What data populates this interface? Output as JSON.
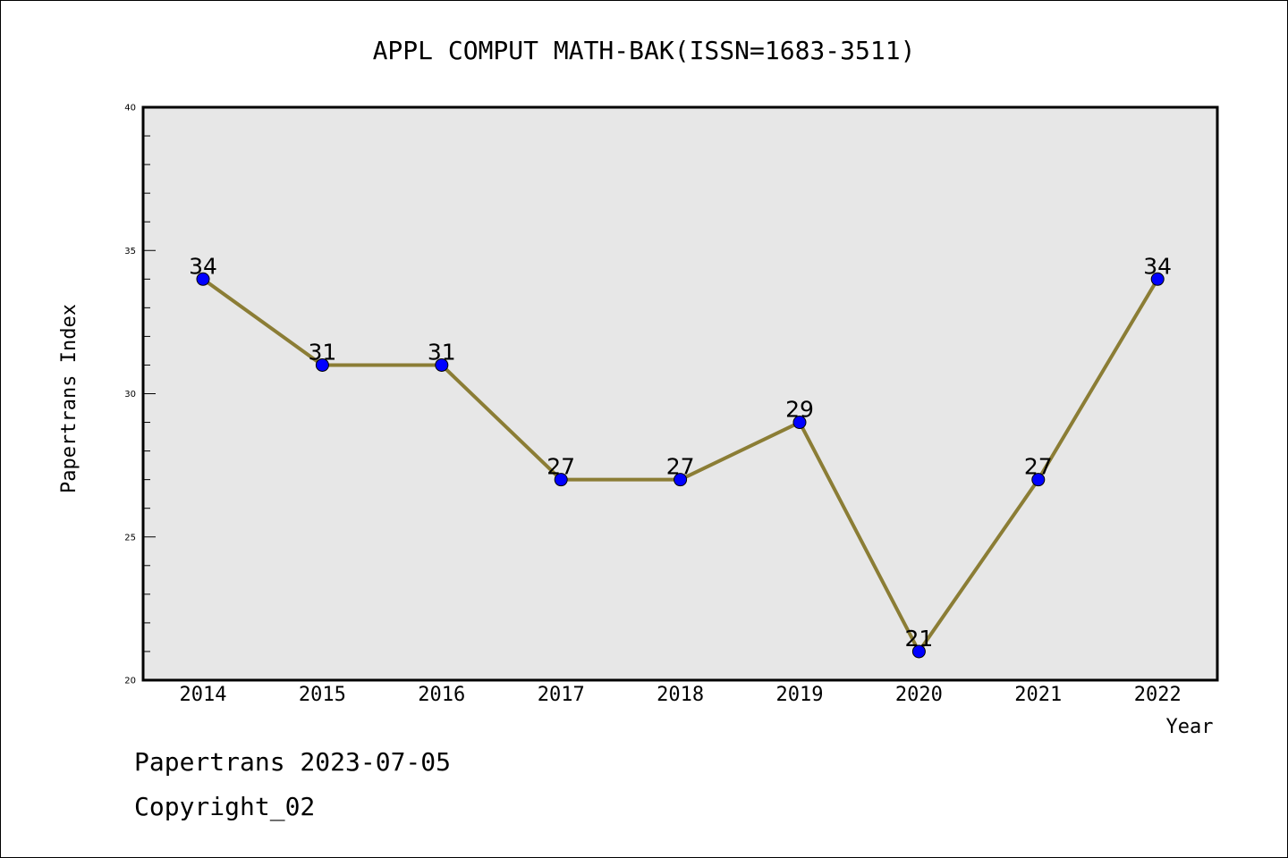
{
  "chart_data": {
    "type": "line",
    "title": "APPL COMPUT MATH-BAK(ISSN=1683-3511)",
    "xlabel": "Year",
    "ylabel": "Papertrans Index",
    "categories": [
      "2014",
      "2015",
      "2016",
      "2017",
      "2018",
      "2019",
      "2020",
      "2021",
      "2022"
    ],
    "series": [
      {
        "values": [
          34,
          31,
          31,
          27,
          27,
          29,
          21,
          27,
          34
        ]
      }
    ],
    "data_labels": [
      "34",
      "31",
      "31",
      "27",
      "27",
      "29",
      "21",
      "27",
      "34"
    ],
    "ylim": [
      20,
      40
    ],
    "yticks": [
      "20",
      "25",
      "30",
      "35",
      "40"
    ],
    "grid": false,
    "colors": {
      "line": "#8b7d35",
      "marker": "#0000ff",
      "plot_background": "#e7e7e7"
    }
  },
  "footer": {
    "line1": "Papertrans 2023-07-05",
    "line2": "Copyright_02"
  }
}
